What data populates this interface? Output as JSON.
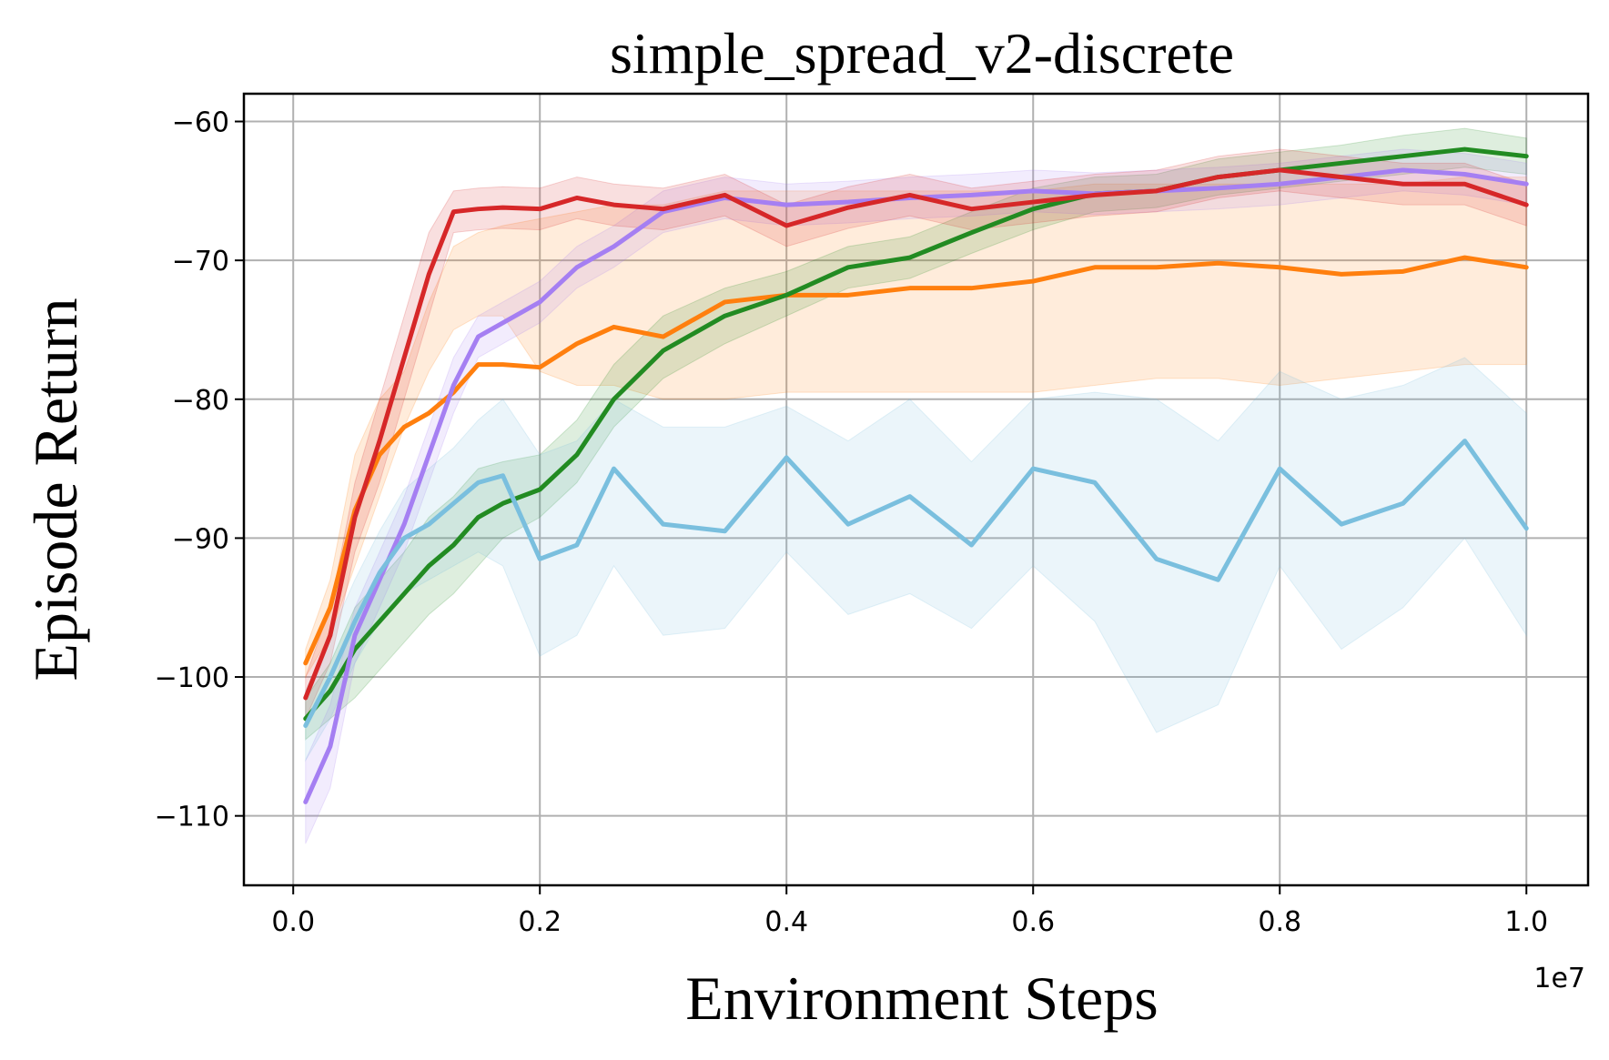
{
  "chart_data": {
    "type": "line",
    "title": "simple_spread_v2-discrete",
    "xlabel": "Environment Steps",
    "ylabel": "Episode Return",
    "x_offset_label": "1e7",
    "xlim": [
      -0.04,
      1.05
    ],
    "ylim": [
      -115,
      -58
    ],
    "xticks": [
      0.0,
      0.2,
      0.4,
      0.6,
      0.8,
      1.0
    ],
    "xtick_labels": [
      "0.0",
      "0.2",
      "0.4",
      "0.6",
      "0.8",
      "1.0"
    ],
    "yticks": [
      -60,
      -70,
      -80,
      -90,
      -100,
      -110
    ],
    "ytick_labels": [
      "−60",
      "−70",
      "−80",
      "−90",
      "−100",
      "−110"
    ],
    "grid": true,
    "x": [
      0.01,
      0.03,
      0.05,
      0.07,
      0.09,
      0.11,
      0.13,
      0.15,
      0.17,
      0.2,
      0.23,
      0.26,
      0.3,
      0.35,
      0.4,
      0.45,
      0.5,
      0.55,
      0.6,
      0.65,
      0.7,
      0.75,
      0.8,
      0.85,
      0.9,
      0.95,
      1.0
    ],
    "series": [
      {
        "name": "orange",
        "color": "#ff7f0e",
        "values": [
          -99,
          -95,
          -88,
          -84,
          -82,
          -81,
          -79.5,
          -77.5,
          -77.5,
          -77.7,
          -76,
          -74.8,
          -75.5,
          -73,
          -72.5,
          -72.5,
          -72,
          -72,
          -71.5,
          -70.5,
          -70.5,
          -70.2,
          -70.5,
          -71,
          -70.8,
          -69.8,
          -70.5
        ],
        "lower": [
          -100,
          -97,
          -92,
          -87,
          -82,
          -78,
          -75,
          -74,
          -74,
          -78,
          -79,
          -79,
          -80,
          -80,
          -79.5,
          -79.5,
          -79.5,
          -79.5,
          -79.5,
          -79,
          -78.5,
          -78.5,
          -79,
          -78.5,
          -78,
          -77.5,
          -77.5
        ],
        "upper": [
          -98,
          -93,
          -84,
          -80,
          -78,
          -73,
          -69,
          -68,
          -67.5,
          -67,
          -66.5,
          -66,
          -66,
          -65,
          -65,
          -65,
          -65,
          -65,
          -65,
          -64.5,
          -64.5,
          -64.5,
          -64.5,
          -64.5,
          -64.5,
          -64,
          -64
        ]
      },
      {
        "name": "green",
        "color": "#228b22",
        "values": [
          -103,
          -101,
          -98,
          -96,
          -94,
          -92,
          -90.5,
          -88.5,
          -87.5,
          -86.5,
          -84,
          -80,
          -76.5,
          -74,
          -72.5,
          -70.5,
          -69.8,
          -68,
          -66.3,
          -65.2,
          -65,
          -64,
          -63.5,
          -63,
          -62.5,
          -62,
          -62.5
        ],
        "lower": [
          -104.5,
          -103,
          -101.5,
          -99.5,
          -97.5,
          -95.5,
          -94,
          -92,
          -90,
          -88.5,
          -86,
          -82,
          -78.5,
          -76,
          -74,
          -72,
          -71.3,
          -69.5,
          -67.8,
          -66.5,
          -66.2,
          -65.3,
          -64.8,
          -64.3,
          -63.8,
          -63.3,
          -63.8
        ],
        "upper": [
          -101.5,
          -99,
          -95,
          -93,
          -91,
          -88.5,
          -87,
          -85,
          -84.5,
          -84,
          -81.5,
          -77.5,
          -74,
          -72,
          -70.8,
          -69,
          -68.3,
          -66.5,
          -64.8,
          -64,
          -63.8,
          -62.7,
          -62.2,
          -61.7,
          -61,
          -60.5,
          -61.2
        ]
      },
      {
        "name": "purple",
        "color": "#a57ff2",
        "values": [
          -109,
          -105,
          -97,
          -93,
          -89,
          -84,
          -79,
          -75.5,
          -74.5,
          -73,
          -70.5,
          -69,
          -66.5,
          -65.5,
          -66,
          -65.8,
          -65.5,
          -65.3,
          -65,
          -65.2,
          -65,
          -64.8,
          -64.5,
          -64,
          -63.5,
          -63.8,
          -64.5
        ],
        "lower": [
          -112,
          -108,
          -99,
          -95,
          -91,
          -86,
          -81,
          -77,
          -76,
          -74.5,
          -72,
          -70.5,
          -68,
          -67,
          -67.5,
          -67.3,
          -67,
          -66.8,
          -66.5,
          -66.7,
          -66.5,
          -66.3,
          -66,
          -65.5,
          -65,
          -65.3,
          -66
        ],
        "upper": [
          -106,
          -102,
          -95,
          -91,
          -87,
          -82,
          -77,
          -74,
          -73,
          -71.5,
          -69,
          -67.5,
          -65,
          -64,
          -64.5,
          -64.3,
          -64,
          -63.8,
          -63.5,
          -63.7,
          -63.5,
          -63.3,
          -63,
          -62.5,
          -62,
          -62.3,
          -63
        ]
      },
      {
        "name": "red",
        "color": "#d62728",
        "values": [
          -101.5,
          -97,
          -88.5,
          -83,
          -77,
          -71,
          -66.5,
          -66.3,
          -66.2,
          -66.3,
          -65.5,
          -66,
          -66.3,
          -65.3,
          -67.5,
          -66.2,
          -65.3,
          -66.3,
          -65.8,
          -65.3,
          -65,
          -64,
          -63.5,
          -64,
          -64.5,
          -64.5,
          -66
        ],
        "lower": [
          -103,
          -99,
          -91,
          -86,
          -80,
          -74,
          -68,
          -67.8,
          -67.7,
          -67.8,
          -67,
          -67.5,
          -67.8,
          -66.8,
          -69,
          -67.7,
          -66.8,
          -67.8,
          -67.3,
          -66.8,
          -66.5,
          -65.5,
          -65,
          -65.5,
          -66,
          -66,
          -67.5
        ],
        "upper": [
          -100,
          -95,
          -86,
          -80,
          -74,
          -68,
          -65,
          -64.8,
          -64.7,
          -64.8,
          -64,
          -64.5,
          -64.8,
          -63.8,
          -66,
          -64.7,
          -63.8,
          -64.8,
          -64.3,
          -63.8,
          -63.5,
          -62.5,
          -62,
          -62.5,
          -63,
          -63,
          -64.5
        ]
      },
      {
        "name": "light-blue",
        "color": "#7abfde",
        "values": [
          -103.5,
          -100,
          -96,
          -92.5,
          -90,
          -89,
          -87.5,
          -86,
          -85.5,
          -91.5,
          -90.5,
          -85,
          -89,
          -89.5,
          -84.2,
          -89,
          -87,
          -90.5,
          -85,
          -86,
          -91.5,
          -93,
          -85,
          -89,
          -87.5,
          -83,
          -89.3
        ],
        "lower": [
          -106,
          -103,
          -99,
          -96,
          -94,
          -93,
          -92,
          -91,
          -92,
          -98.5,
          -97,
          -92,
          -97,
          -96.5,
          -91,
          -95.5,
          -94,
          -96.5,
          -92,
          -96,
          -104,
          -102,
          -92,
          -98,
          -95,
          -90,
          -97
        ],
        "upper": [
          -101,
          -97,
          -93,
          -89.5,
          -86.5,
          -85,
          -83.5,
          -81.5,
          -80,
          -84,
          -83,
          -80,
          -82,
          -82,
          -80.5,
          -83,
          -80,
          -84.5,
          -80,
          -79.5,
          -80,
          -83,
          -78,
          -80,
          -79,
          -77,
          -81
        ]
      }
    ]
  }
}
